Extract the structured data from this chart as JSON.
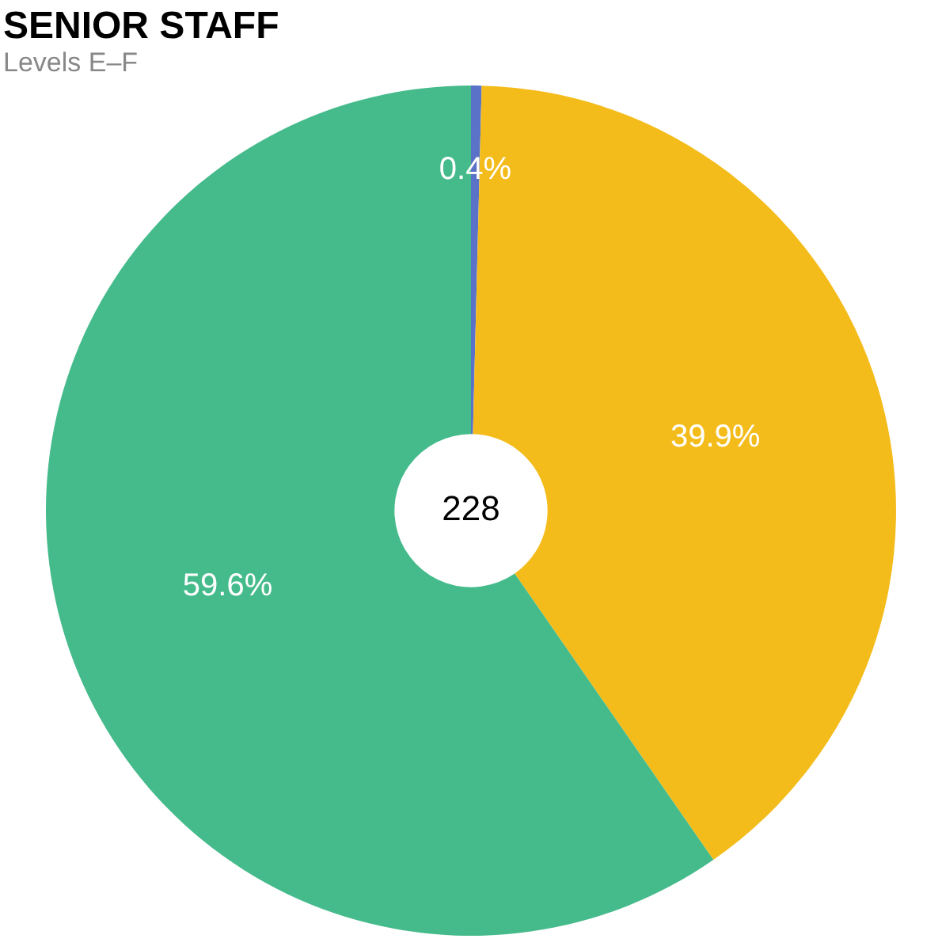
{
  "chart_data": {
    "type": "donut",
    "title": "SENIOR STAFF",
    "subtitle": "Levels E–F",
    "categories": [
      null,
      null,
      null
    ],
    "values": [
      0.4,
      39.9,
      59.6
    ],
    "colors": [
      "#5a73c8",
      "#f4bc1b",
      "#45bb8b"
    ],
    "value_labels": [
      "0.4%",
      "39.9%",
      "59.6%"
    ],
    "annotations": [
      "228"
    ],
    "legend": false
  }
}
